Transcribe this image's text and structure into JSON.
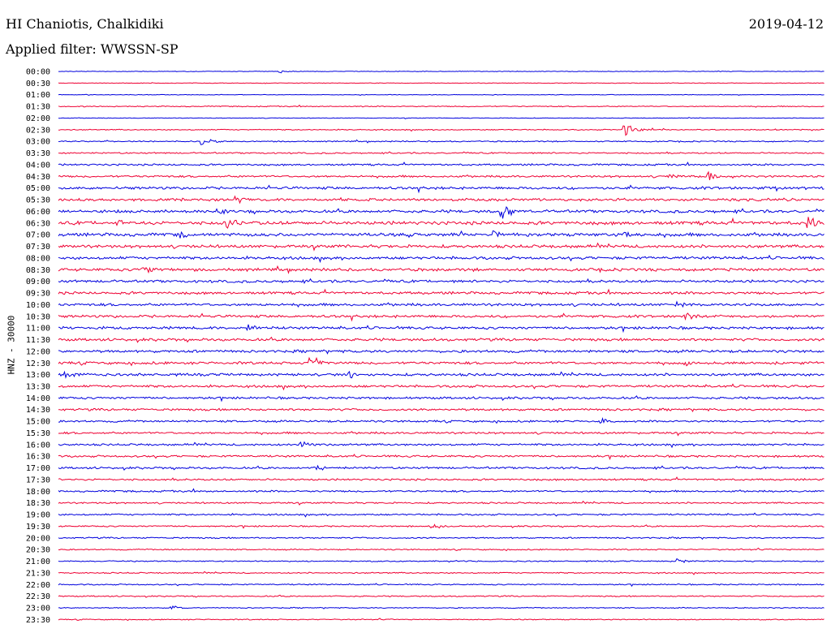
{
  "header": {
    "station": "HI Chaniotis, Chalkidiki",
    "date": "2019-04-12",
    "filter": "Applied filter: WWSSN-SP"
  },
  "chart_data": {
    "type": "line",
    "title": "HI Chaniotis, Chalkidiki",
    "ylabel": "HNZ - 30000",
    "row_labels": [
      "00:00",
      "00:30",
      "01:00",
      "01:30",
      "02:00",
      "02:30",
      "03:00",
      "03:30",
      "04:00",
      "04:30",
      "05:00",
      "05:30",
      "06:00",
      "06:30",
      "07:00",
      "07:30",
      "08:00",
      "08:30",
      "09:00",
      "09:30",
      "10:00",
      "10:30",
      "11:00",
      "11:30",
      "12:00",
      "12:30",
      "13:00",
      "13:30",
      "14:00",
      "14:30",
      "15:00",
      "15:30",
      "16:00",
      "16:30",
      "17:00",
      "17:30",
      "18:00",
      "18:30",
      "19:00",
      "19:30",
      "20:00",
      "20:30",
      "21:00",
      "21:30",
      "22:00",
      "22:30",
      "23:00",
      "23:30"
    ],
    "noise_level": [
      0.3,
      0.3,
      0.3,
      0.5,
      0.3,
      0.5,
      0.6,
      0.7,
      0.9,
      1.0,
      1.3,
      1.3,
      1.4,
      1.7,
      1.6,
      1.5,
      1.4,
      1.4,
      1.3,
      1.3,
      1.3,
      1.3,
      1.3,
      1.3,
      1.3,
      1.3,
      1.3,
      1.2,
      1.1,
      1.1,
      1.0,
      1.0,
      1.0,
      1.0,
      1.0,
      0.9,
      0.9,
      0.8,
      0.8,
      0.7,
      0.7,
      0.6,
      0.6,
      0.6,
      0.6,
      0.6,
      0.5,
      0.5
    ],
    "events": [
      {
        "row": 0,
        "pos": 0.29,
        "amp": 2
      },
      {
        "row": 5,
        "pos": 0.74,
        "amp": 10
      },
      {
        "row": 6,
        "pos": 0.19,
        "amp": 6
      },
      {
        "row": 9,
        "pos": 0.8,
        "amp": 5
      },
      {
        "row": 9,
        "pos": 0.85,
        "amp": 6
      },
      {
        "row": 11,
        "pos": 0.23,
        "amp": 8
      },
      {
        "row": 12,
        "pos": 0.21,
        "amp": 7
      },
      {
        "row": 12,
        "pos": 0.58,
        "amp": 12
      },
      {
        "row": 13,
        "pos": 0.08,
        "amp": 8
      },
      {
        "row": 13,
        "pos": 0.22,
        "amp": 9
      },
      {
        "row": 13,
        "pos": 0.98,
        "amp": 12
      },
      {
        "row": 14,
        "pos": 0.16,
        "amp": 7
      },
      {
        "row": 14,
        "pos": 0.57,
        "amp": 6
      },
      {
        "row": 14,
        "pos": 0.74,
        "amp": 5
      },
      {
        "row": 17,
        "pos": 0.11,
        "amp": 10
      },
      {
        "row": 20,
        "pos": 0.81,
        "amp": 6
      },
      {
        "row": 21,
        "pos": 0.82,
        "amp": 6
      },
      {
        "row": 22,
        "pos": 0.25,
        "amp": 5
      },
      {
        "row": 25,
        "pos": 0.33,
        "amp": 12
      },
      {
        "row": 25,
        "pos": 0.82,
        "amp": 6
      },
      {
        "row": 26,
        "pos": 0.01,
        "amp": 6
      },
      {
        "row": 26,
        "pos": 0.38,
        "amp": 6
      },
      {
        "row": 30,
        "pos": 0.71,
        "amp": 4
      },
      {
        "row": 32,
        "pos": 0.32,
        "amp": 5
      },
      {
        "row": 34,
        "pos": 0.34,
        "amp": 4
      },
      {
        "row": 39,
        "pos": 0.49,
        "amp": 5
      },
      {
        "row": 42,
        "pos": 0.81,
        "amp": 4
      },
      {
        "row": 46,
        "pos": 0.15,
        "amp": 3
      }
    ],
    "colors": {
      "even_rows": "#0000dd",
      "odd_rows": "#ee0033",
      "text": "#000000"
    }
  }
}
